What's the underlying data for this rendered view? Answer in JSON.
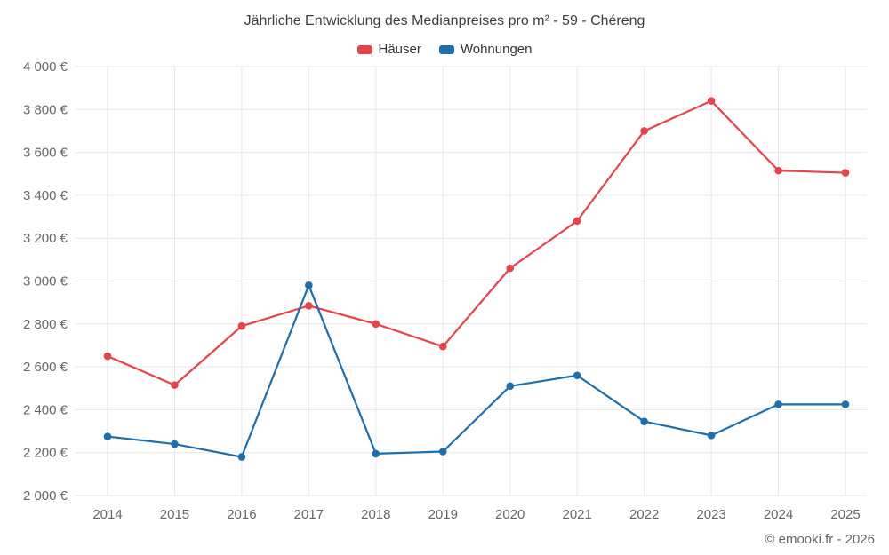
{
  "chart_data": {
    "type": "line",
    "title": "Jährliche Entwicklung des Medianpreises pro m² - 59 - Chéreng",
    "categories": [
      "2014",
      "2015",
      "2016",
      "2017",
      "2018",
      "2019",
      "2020",
      "2021",
      "2022",
      "2023",
      "2024",
      "2025"
    ],
    "series": [
      {
        "name": "Häuser",
        "color": "#e8434a",
        "values": [
          2650,
          2515,
          2790,
          2885,
          2800,
          2695,
          3060,
          3280,
          3700,
          3840,
          3515,
          3505
        ]
      },
      {
        "name": "Wohnungen",
        "color": "#1d6fad",
        "values": [
          2275,
          2240,
          2180,
          2980,
          2195,
          2205,
          2510,
          2560,
          2345,
          2280,
          2425,
          2425
        ]
      }
    ],
    "ylim": [
      2000,
      4000
    ],
    "ytick_step": 200,
    "ytick_suffix": " €",
    "grid": true,
    "grid_color": "#e6e6e6",
    "label_color": "#666666",
    "legend_position": "top"
  },
  "footer": {
    "copyright": "© emooki.fr - 2026"
  }
}
